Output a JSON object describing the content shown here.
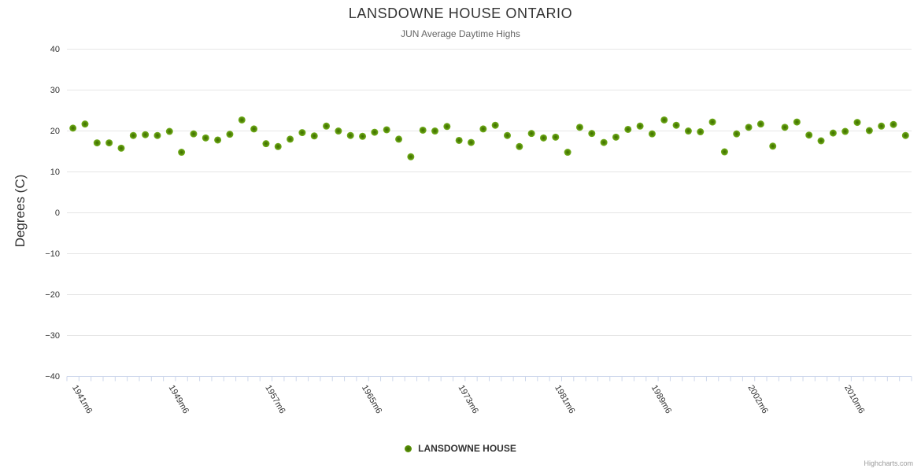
{
  "header": {
    "title": "LANSDOWNE HOUSE ONTARIO",
    "subtitle": "JUN Average Daytime Highs"
  },
  "legend": {
    "label": "LANSDOWNE HOUSE"
  },
  "credit": {
    "label": "Highcharts.com"
  },
  "colors": {
    "marker_edge": "#76b222",
    "marker_mid": "#568d07",
    "marker_center": "#3c6b00",
    "grid_line": "#e6e6e6",
    "axis_line": "#ccd6eb",
    "label_text": "#333333",
    "title_text": "#333333",
    "subtitle_text": "#666666",
    "credit_text": "#999999",
    "background": "#ffffff"
  },
  "chart_data": {
    "type": "scatter",
    "title": "LANSDOWNE HOUSE ONTARIO",
    "subtitle": "JUN Average Daytime Highs",
    "xlabel": "",
    "ylabel": "Degrees (C)",
    "ylim": [
      -40,
      40
    ],
    "y_ticks": [
      40,
      30,
      20,
      10,
      0,
      -10,
      -20,
      -30,
      -40
    ],
    "y_tick_labels": [
      "40",
      "30",
      "20",
      "10",
      "0",
      "−10",
      "−20",
      "−30",
      "−40"
    ],
    "x_tick_labels": [
      "1941m6",
      "1949m6",
      "1957m6",
      "1965m6",
      "1973m6",
      "1981m6",
      "1989m6",
      "2002m6",
      "2010m6"
    ],
    "x_label_every": 8,
    "x_label_rotation_deg": 60,
    "grid": "horizontal",
    "legend_position": "bottom",
    "series": [
      {
        "name": "LANSDOWNE HOUSE",
        "values": [
          20.6,
          21.6,
          17.0,
          17.0,
          15.7,
          18.8,
          19.0,
          18.8,
          19.8,
          14.7,
          19.2,
          18.2,
          17.7,
          19.1,
          22.6,
          20.4,
          16.8,
          16.1,
          17.9,
          19.5,
          18.7,
          21.1,
          19.9,
          18.8,
          18.6,
          19.6,
          20.2,
          17.9,
          13.6,
          20.1,
          19.9,
          21.0,
          17.6,
          17.1,
          20.4,
          21.3,
          18.8,
          16.1,
          19.3,
          18.2,
          18.4,
          14.7,
          20.8,
          19.3,
          17.1,
          18.4,
          20.3,
          21.1,
          19.2,
          22.6,
          21.3,
          19.9,
          19.7,
          22.1,
          14.8,
          19.2,
          20.8,
          21.6,
          16.2,
          20.8,
          22.1,
          18.9,
          17.5,
          19.4,
          19.8,
          22.0,
          20.0,
          21.1,
          21.5,
          18.8
        ]
      }
    ]
  }
}
